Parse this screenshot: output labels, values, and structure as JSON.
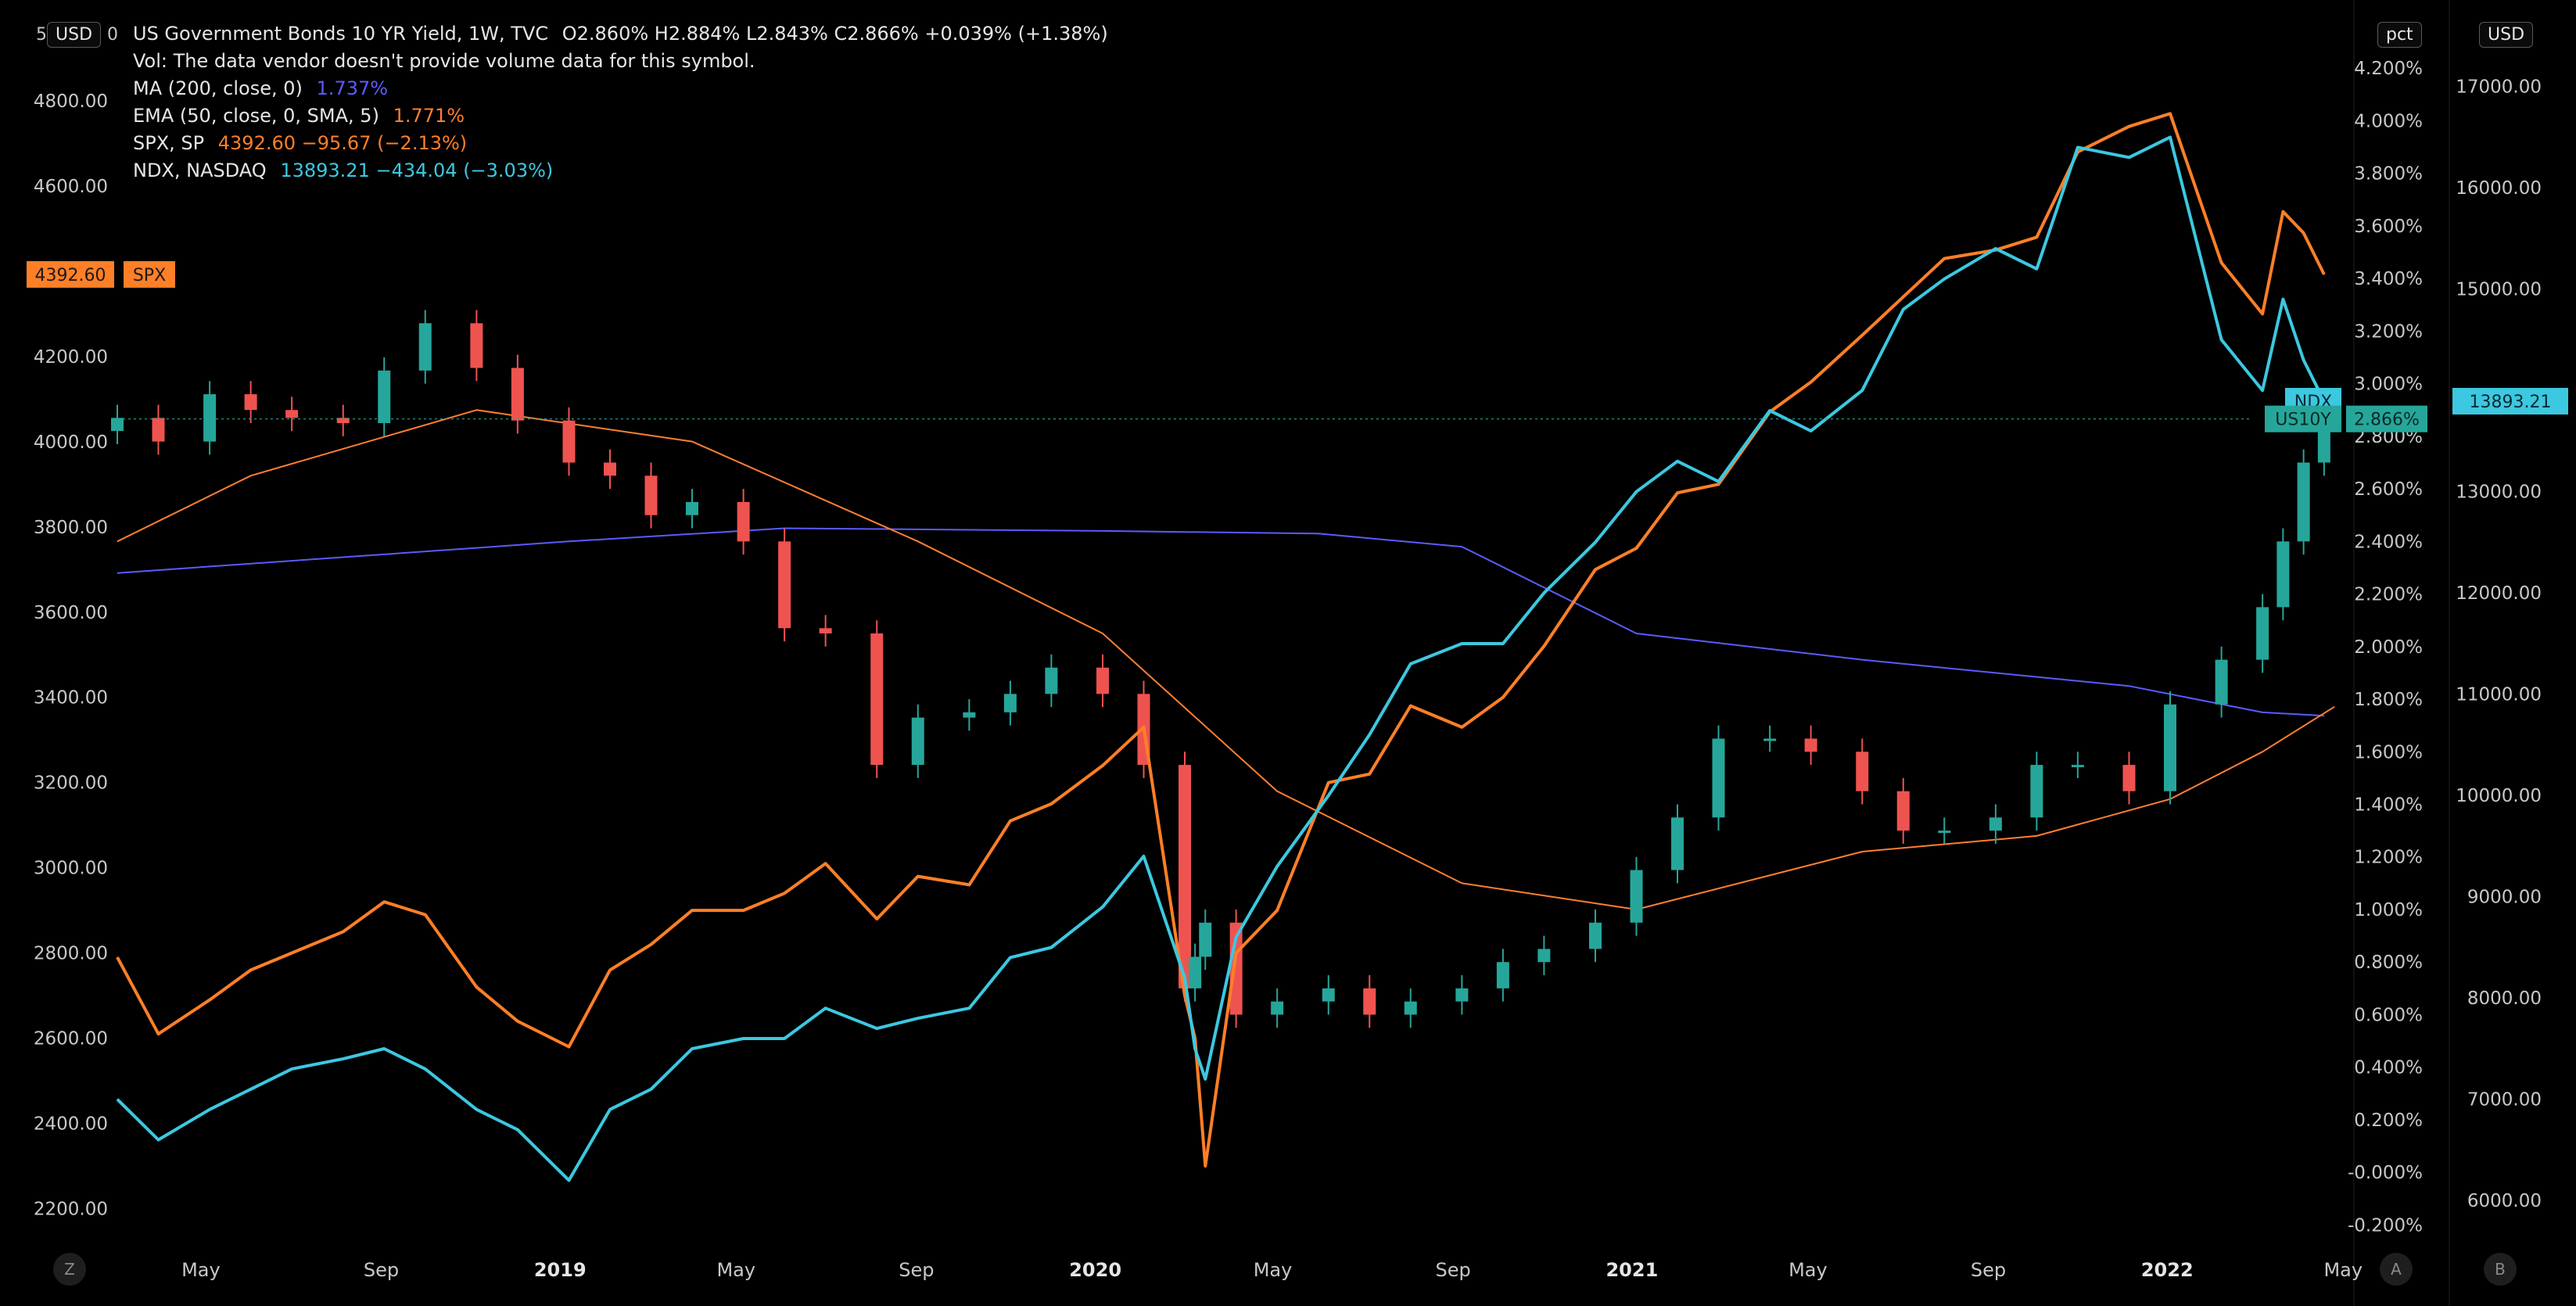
{
  "legend": {
    "title": "US Government Bonds 10 YR Yield, 1W, TVC",
    "ohlc": "O2.860%  H2.884%  L2.843%  C2.866%  +0.039% (+1.38%)",
    "vol": "Vol: The data vendor doesn't provide volume data for this symbol.",
    "ma_label": "MA (200, close, 0)",
    "ma_value": "1.737%",
    "ema_label": "EMA (50, close, 0, SMA, 5)",
    "ema_value": "1.771%",
    "spx_label": "SPX, SP",
    "spx_value": "4392.60  −95.67 (−2.13%)",
    "ndx_label": "NDX, NASDAQ",
    "ndx_value": "13893.21  −434.04 (−3.03%)"
  },
  "axis_tags": {
    "left": "USD",
    "pct": "pct",
    "right": "USD"
  },
  "left_axis_first_partial": "5",
  "left_axis_first_partial_tail": "0",
  "corner_buttons": {
    "z": "Z",
    "a": "A",
    "b": "B"
  },
  "price_tags": {
    "spx_price": "4392.60",
    "spx_symbol": "SPX",
    "ndx_symbol": "NDX",
    "ndx_price": "13893.21",
    "us10y_symbol": "US10Y",
    "us10y_price": "2.866%"
  },
  "colors": {
    "background": "#000000",
    "up": "#26a69a",
    "down": "#ef5350",
    "ma": "#5b5bff",
    "ema": "#ff7f32",
    "spx": "#ff7f27",
    "ndx": "#3cc8e0",
    "grid": "#1a1a1a",
    "axis_text": "#c8c8c8"
  },
  "chart_data": {
    "type": "line",
    "title": "US Government Bonds 10 YR Yield, 1W, TVC",
    "x_axis": {
      "ticks": [
        "May",
        "Sep",
        "2019",
        "May",
        "Sep",
        "2020",
        "May",
        "Sep",
        "2021",
        "May",
        "Sep",
        "2022",
        "May"
      ],
      "tick_dates": [
        "2018-05-01",
        "2018-09-01",
        "2019-01-01",
        "2019-05-01",
        "2019-09-01",
        "2020-01-01",
        "2020-05-01",
        "2020-09-01",
        "2021-01-01",
        "2021-05-01",
        "2021-09-01",
        "2022-01-01",
        "2022-05-01"
      ],
      "range": [
        "2018-03-05",
        "2022-04-25"
      ]
    },
    "y_axis_left": {
      "label": "USD",
      "ticks": [
        "4800.00",
        "4600.00",
        "4392.60",
        "4200.00",
        "4000.00",
        "3800.00",
        "3600.00",
        "3400.00",
        "3200.00",
        "3000.00",
        "2800.00",
        "2600.00",
        "2400.00",
        "2200.00"
      ],
      "range": [
        2100,
        5000
      ]
    },
    "y_axis_pct": {
      "label": "pct",
      "ticks": [
        "4.200%",
        "4.000%",
        "3.800%",
        "3.600%",
        "3.400%",
        "3.200%",
        "3.000%",
        "2.800%",
        "2.600%",
        "2.400%",
        "2.200%",
        "2.000%",
        "1.800%",
        "1.600%",
        "1.400%",
        "1.200%",
        "1.000%",
        "0.800%",
        "0.600%",
        "0.400%",
        "0.200%",
        "-0.000%",
        "-0.200%"
      ],
      "range": [
        -0.3,
        4.4
      ]
    },
    "y_axis_right": {
      "label": "USD",
      "ticks": [
        "17000.00",
        "16000.00",
        "15000.00",
        "13893.21",
        "13000.00",
        "12000.00",
        "11000.00",
        "10000.00",
        "9000.00",
        "8000.00",
        "7000.00",
        "6000.00"
      ],
      "range": [
        5500,
        17700
      ]
    },
    "series": [
      {
        "name": "US10Y",
        "kind": "candles",
        "axis": "pct",
        "x": [
          "2018-03-05",
          "2018-04-02",
          "2018-05-07",
          "2018-06-04",
          "2018-07-02",
          "2018-08-06",
          "2018-09-03",
          "2018-10-01",
          "2018-11-05",
          "2018-12-03",
          "2019-01-07",
          "2019-02-04",
          "2019-03-04",
          "2019-04-01",
          "2019-05-06",
          "2019-06-03",
          "2019-07-01",
          "2019-08-05",
          "2019-09-02",
          "2019-10-07",
          "2019-11-04",
          "2019-12-02",
          "2020-01-06",
          "2020-02-03",
          "2020-03-02",
          "2020-03-09",
          "2020-03-16",
          "2020-04-06",
          "2020-05-04",
          "2020-06-08",
          "2020-07-06",
          "2020-08-03",
          "2020-09-07",
          "2020-10-05",
          "2020-11-02",
          "2020-12-07",
          "2021-01-04",
          "2021-02-01",
          "2021-03-01",
          "2021-04-05",
          "2021-05-03",
          "2021-06-07",
          "2021-07-05",
          "2021-08-02",
          "2021-09-06",
          "2021-10-04",
          "2021-11-01",
          "2021-12-06",
          "2022-01-03",
          "2022-02-07",
          "2022-03-07",
          "2022-03-21",
          "2022-04-04",
          "2022-04-18"
        ],
        "y": [
          2.87,
          2.78,
          2.96,
          2.9,
          2.87,
          2.85,
          3.05,
          3.23,
          3.06,
          2.86,
          2.7,
          2.65,
          2.5,
          2.55,
          2.4,
          2.07,
          2.05,
          1.55,
          1.73,
          1.75,
          1.82,
          1.92,
          1.82,
          1.55,
          0.7,
          0.82,
          0.95,
          0.6,
          0.65,
          0.7,
          0.6,
          0.65,
          0.7,
          0.8,
          0.85,
          0.95,
          1.15,
          1.35,
          1.65,
          1.65,
          1.6,
          1.45,
          1.3,
          1.3,
          1.35,
          1.55,
          1.55,
          1.45,
          1.78,
          1.95,
          2.15,
          2.4,
          2.7,
          2.866
        ]
      },
      {
        "name": "MA (200, close, 0)",
        "kind": "line",
        "axis": "pct",
        "x": [
          "2018-03-05",
          "2019-01-07",
          "2019-06-03",
          "2020-01-06",
          "2020-06-01",
          "2020-09-07",
          "2021-01-04",
          "2021-06-07",
          "2021-12-06",
          "2022-03-07",
          "2022-04-18"
        ],
        "y": [
          2.28,
          2.4,
          2.45,
          2.44,
          2.43,
          2.38,
          2.05,
          1.95,
          1.85,
          1.75,
          1.737
        ]
      },
      {
        "name": "EMA (50, close, 0, SMA, 5)",
        "kind": "line",
        "axis": "pct",
        "x": [
          "2018-03-05",
          "2018-06-04",
          "2018-11-05",
          "2019-04-01",
          "2019-09-02",
          "2020-01-06",
          "2020-05-04",
          "2020-09-07",
          "2021-01-04",
          "2021-06-07",
          "2021-10-04",
          "2022-01-03",
          "2022-03-07",
          "2022-04-25"
        ],
        "y": [
          2.4,
          2.65,
          2.9,
          2.78,
          2.4,
          2.05,
          1.45,
          1.1,
          1.0,
          1.22,
          1.28,
          1.42,
          1.6,
          1.771
        ]
      },
      {
        "name": "SPX, SP",
        "kind": "line",
        "axis": "left",
        "x": [
          "2018-03-05",
          "2018-04-02",
          "2018-05-07",
          "2018-06-04",
          "2018-07-02",
          "2018-08-06",
          "2018-09-03",
          "2018-10-01",
          "2018-11-05",
          "2018-12-03",
          "2019-01-07",
          "2019-02-04",
          "2019-03-04",
          "2019-04-01",
          "2019-05-06",
          "2019-06-03",
          "2019-07-01",
          "2019-08-05",
          "2019-09-02",
          "2019-10-07",
          "2019-11-04",
          "2019-12-02",
          "2020-01-06",
          "2020-02-03",
          "2020-03-02",
          "2020-03-09",
          "2020-03-16",
          "2020-04-06",
          "2020-05-04",
          "2020-06-08",
          "2020-07-06",
          "2020-08-03",
          "2020-09-07",
          "2020-10-05",
          "2020-11-02",
          "2020-12-07",
          "2021-01-04",
          "2021-02-01",
          "2021-03-01",
          "2021-04-05",
          "2021-05-03",
          "2021-06-07",
          "2021-07-05",
          "2021-08-02",
          "2021-09-06",
          "2021-10-04",
          "2021-11-01",
          "2021-12-06",
          "2022-01-03",
          "2022-02-07",
          "2022-03-07",
          "2022-03-21",
          "2022-04-04",
          "2022-04-18"
        ],
        "y": [
          2790,
          2610,
          2690,
          2760,
          2800,
          2850,
          2920,
          2890,
          2720,
          2640,
          2580,
          2760,
          2820,
          2900,
          2900,
          2940,
          3010,
          2880,
          2980,
          2960,
          3110,
          3150,
          3240,
          3330,
          2700,
          2600,
          2300,
          2800,
          2900,
          3200,
          3220,
          3380,
          3330,
          3400,
          3520,
          3700,
          3750,
          3880,
          3900,
          4070,
          4140,
          4250,
          4340,
          4430,
          4450,
          4480,
          4680,
          4740,
          4770,
          4420,
          4300,
          4540,
          4490,
          4392.6
        ]
      },
      {
        "name": "NDX, NASDAQ",
        "kind": "line",
        "axis": "right",
        "x": [
          "2018-03-05",
          "2018-04-02",
          "2018-05-07",
          "2018-06-04",
          "2018-07-02",
          "2018-08-06",
          "2018-09-03",
          "2018-10-01",
          "2018-11-05",
          "2018-12-03",
          "2019-01-07",
          "2019-02-04",
          "2019-03-04",
          "2019-04-01",
          "2019-05-06",
          "2019-06-03",
          "2019-07-01",
          "2019-08-05",
          "2019-09-02",
          "2019-10-07",
          "2019-11-04",
          "2019-12-02",
          "2020-01-06",
          "2020-02-03",
          "2020-03-02",
          "2020-03-09",
          "2020-03-16",
          "2020-04-06",
          "2020-05-04",
          "2020-06-08",
          "2020-07-06",
          "2020-08-03",
          "2020-09-07",
          "2020-10-05",
          "2020-11-02",
          "2020-12-07",
          "2021-01-04",
          "2021-02-01",
          "2021-03-01",
          "2021-04-05",
          "2021-05-03",
          "2021-06-07",
          "2021-07-05",
          "2021-08-02",
          "2021-09-06",
          "2021-10-04",
          "2021-11-01",
          "2021-12-06",
          "2022-01-03",
          "2022-02-07",
          "2022-03-07",
          "2022-03-21",
          "2022-04-04",
          "2022-04-18"
        ],
        "y": [
          7000,
          6600,
          6900,
          7100,
          7300,
          7400,
          7500,
          7300,
          6900,
          6700,
          6200,
          6900,
          7100,
          7500,
          7600,
          7600,
          7900,
          7700,
          7800,
          7900,
          8400,
          8500,
          8900,
          9400,
          8200,
          7500,
          7200,
          8600,
          9300,
          10000,
          10600,
          11300,
          11500,
          11500,
          12000,
          12500,
          13000,
          13300,
          13100,
          13800,
          13600,
          14000,
          14800,
          15100,
          15400,
          15200,
          16400,
          16300,
          16500,
          14500,
          14000,
          14900,
          14300,
          13893.21
        ]
      }
    ]
  }
}
